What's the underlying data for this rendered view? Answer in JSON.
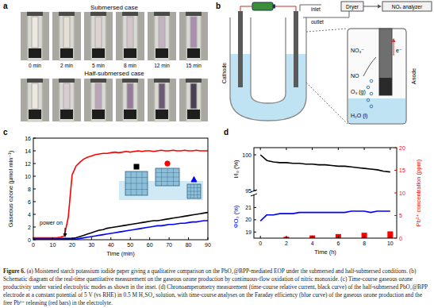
{
  "panel_labels": [
    "a",
    "b",
    "c",
    "d"
  ],
  "panel_a": {
    "rows": [
      "Submersed case",
      "Half-submersed case"
    ],
    "times": [
      "0 min",
      "2 min",
      "5 min",
      "8 min",
      "12 min",
      "15 min"
    ]
  },
  "panel_b": {
    "inlet": "inlet",
    "outlet": "outlet",
    "dryer": "Dryer",
    "analyzer": "NOₓ analyzer",
    "cathode": "Cathode",
    "anode": "Anode",
    "electron": "e⁻",
    "nitrate": "NO₃⁻",
    "no": "NO",
    "ozone": "O₃ (g)",
    "water": "H₂O (l)"
  },
  "chart_data": [
    {
      "type": "line",
      "xlabel": "Time (min)",
      "ylabel": "Gaseous ozone (µmol min⁻¹)",
      "annotation": "power on",
      "x": [
        0,
        2,
        4,
        6,
        8,
        10,
        12,
        14,
        16,
        18,
        20,
        22,
        24,
        26,
        28,
        30,
        32,
        34,
        36,
        38,
        40,
        42,
        44,
        46,
        48,
        50,
        52,
        54,
        56,
        58,
        60,
        62,
        64,
        66,
        68,
        70,
        72,
        74,
        76,
        78,
        80,
        82,
        84,
        86,
        88,
        90
      ],
      "xlim": [
        0,
        90
      ],
      "xticks": [
        0,
        10,
        20,
        30,
        40,
        50,
        60,
        70,
        80,
        90
      ],
      "ylim": [
        0,
        16
      ],
      "yticks": [
        0,
        2,
        4,
        6,
        8,
        10,
        12,
        14,
        16
      ],
      "grid": false,
      "series": [
        {
          "color": "#000000",
          "marker": "square",
          "values": [
            0.2,
            0.2,
            0.2,
            0.2,
            0.2,
            0.2,
            0.2,
            0.2,
            0.2,
            0.2,
            0.2,
            0.3,
            0.5,
            0.7,
            0.9,
            1.1,
            1.3,
            1.5,
            1.6,
            1.8,
            1.9,
            2.0,
            2.1,
            2.2,
            2.3,
            2.4,
            2.5,
            2.6,
            2.7,
            2.8,
            2.9,
            3.0,
            3.0,
            3.1,
            3.2,
            3.3,
            3.4,
            3.5,
            3.6,
            3.7,
            3.8,
            3.9,
            4.0,
            4.1,
            4.2,
            4.3
          ]
        },
        {
          "color": "#ff0000",
          "marker": "circle",
          "values": [
            0.3,
            0.3,
            0.3,
            0.3,
            0.3,
            0.3,
            0.3,
            0.4,
            0.6,
            3.5,
            10.2,
            11.6,
            12.2,
            12.7,
            13.0,
            13.2,
            13.4,
            13.5,
            13.6,
            13.6,
            13.7,
            13.8,
            13.7,
            13.8,
            13.9,
            13.8,
            13.9,
            14.0,
            13.9,
            14.0,
            14.0,
            13.9,
            14.0,
            14.1,
            14.0,
            14.0,
            14.1,
            14.0,
            14.0,
            14.1,
            14.0,
            14.0,
            14.1,
            14.0,
            14.0,
            14.0
          ]
        },
        {
          "color": "#0000ff",
          "marker": "triangle",
          "values": [
            0.1,
            0.1,
            0.1,
            0.1,
            0.1,
            0.1,
            0.1,
            0.1,
            0.1,
            0.1,
            0.1,
            0.1,
            0.2,
            0.3,
            0.4,
            0.5,
            0.6,
            0.7,
            0.8,
            0.9,
            1.0,
            1.1,
            1.2,
            1.3,
            1.4,
            1.5,
            1.6,
            1.7,
            1.8,
            1.9,
            2.0,
            2.1,
            2.2,
            2.2,
            2.3,
            2.4,
            2.4,
            2.5,
            2.6,
            2.6,
            2.7,
            2.8,
            2.8,
            2.9,
            3.0,
            3.0
          ]
        }
      ]
    },
    {
      "type": "line",
      "ylabel": "I/I₀ (%)",
      "x": [
        0,
        0.5,
        1,
        1.5,
        2,
        2.5,
        3,
        3.5,
        4,
        4.5,
        5,
        5.5,
        6,
        6.5,
        7,
        7.5,
        8,
        8.5,
        9,
        9.5,
        10
      ],
      "xlim": [
        -0.5,
        10.5
      ],
      "xticks": [
        0,
        2,
        4,
        6,
        8,
        10
      ],
      "ylim": [
        95,
        101
      ],
      "yticks": [
        95,
        100
      ],
      "tick_labels": "y",
      "series": [
        {
          "color": "#000000",
          "values": [
            100,
            99.2,
            99.0,
            98.9,
            98.9,
            98.8,
            98.8,
            98.7,
            98.7,
            98.6,
            98.6,
            98.5,
            98.4,
            98.4,
            98.3,
            98.2,
            98.1,
            98.0,
            97.9,
            97.7,
            97.6
          ]
        }
      ]
    },
    {
      "type": "line",
      "xlabel": "Time (h)",
      "ylabel": "ΦO₃ (%)",
      "y2label": "Pb²⁺ concentration (ppm)",
      "x": [
        0,
        0.5,
        1,
        1.5,
        2,
        2.5,
        3,
        3.5,
        4,
        4.5,
        5,
        5.5,
        6,
        6.5,
        7,
        7.5,
        8,
        8.5,
        9,
        9.5,
        10
      ],
      "xlim": [
        -0.5,
        10.5
      ],
      "xticks": [
        0,
        2,
        4,
        6,
        8,
        10
      ],
      "ylim": [
        18.5,
        22
      ],
      "yticks": [
        19,
        20,
        21
      ],
      "y2lim": [
        0,
        20
      ],
      "y2ticks": [
        0,
        5,
        10,
        15,
        20
      ],
      "series": [
        {
          "color": "#0000ff",
          "values": [
            19.9,
            20.4,
            20.4,
            20.5,
            20.5,
            20.5,
            20.6,
            20.6,
            20.6,
            20.6,
            20.6,
            20.6,
            20.6,
            20.6,
            20.7,
            20.7,
            20.7,
            20.6,
            20.7,
            20.7,
            20.7
          ]
        },
        {
          "type": "bar",
          "axis": "y2",
          "color": "#ff0000",
          "x": [
            2,
            4,
            6,
            8,
            10
          ],
          "values": [
            0.3,
            0.6,
            0.9,
            1.2,
            1.5
          ]
        }
      ]
    }
  ],
  "caption": {
    "label": "Figure 6.",
    "text": "(a) Moistened starch potassium iodide paper giving a qualitative comparison on the PbO₂@BPP-mediated EOP under the submersed and half-submersed conditions. (b) Schematic diagram of the real-time quantitative measurement on the gaseous ozone production by continuous-flow oxidation of nitric monoxide. (c) Time-course gaseous ozone productivity under varied electrolytic modes as shown in the inset. (d) Chronoamperometry measurement (time-course relative current, black curve) of the half-submersed PbO₂@BPP electrode at a constant potential of 5 V (vs RHE) in 0.5 M H₂SO₄ solution, with time-course analyses on the Faraday efficiency (blue curve) of the gaseous ozone production and the free Pb²⁺ releasing (red bars) in the electrolyte."
  }
}
